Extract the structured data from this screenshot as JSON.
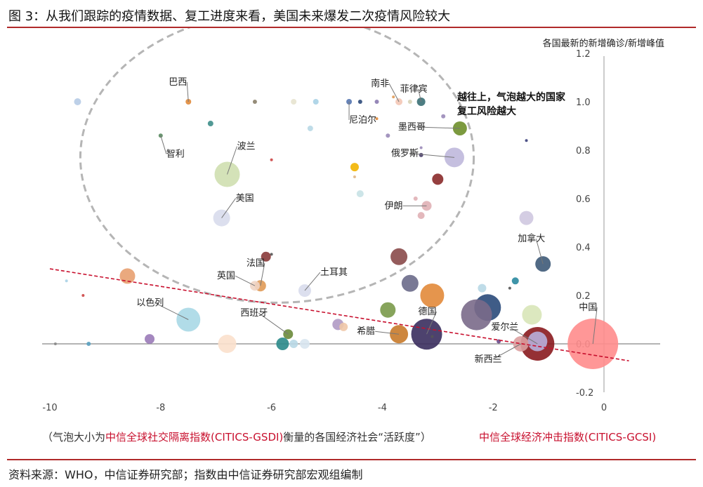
{
  "header": {
    "title": "图 3：从我们跟踪的疫情数据、复工进度来看，美国未来爆发二次疫情风险较大"
  },
  "footer": {
    "footnote_pre": "（气泡大小为",
    "footnote_em": "中信全球社交隔离指数(CITICS-GSDI)",
    "footnote_post": "衡量的各国经济社会“活跃度”）",
    "x_title": "中信全球经济冲击指数(CITICS-GCSI)",
    "source": "资料来源：WHO，中信证券研究部；指数由中信证券研究部宏观组编制"
  },
  "colors": {
    "accent_rule": "#b02a2a",
    "trend_line": "#c8102e",
    "ellipse": "#b5b5b5"
  },
  "chart_data": {
    "type": "scatter",
    "variant": "bubble",
    "y_axis_label": "各国最新的新增确诊/新增峰值",
    "xlim": [
      -10.2,
      0.3
    ],
    "ylim": [
      -0.2,
      1.2
    ],
    "x_ticks": [
      "-10",
      "-8",
      "-6",
      "-4",
      "-2",
      "0"
    ],
    "y_ticks": [
      "1.2",
      "1.0",
      "0.8",
      "0.6",
      "0.4",
      "0.2",
      "0.0",
      "-0.2"
    ],
    "annotation": "越往上，气泡越大的国家\n复工风险越大",
    "trend_line": {
      "from": [
        -10.0,
        0.31
      ],
      "to": [
        0.45,
        -0.07
      ]
    },
    "risk_ellipse": {
      "center": [
        -5.9,
        0.77
      ],
      "rx": 3.55,
      "ry": 0.6
    },
    "points": [
      {
        "name": "巴西",
        "x": -7.5,
        "y": 1.0,
        "size": 4,
        "color": "#e08a3a"
      },
      {
        "name": "南非",
        "x": -3.7,
        "y": 1.0,
        "size": 5,
        "color": "#f3c7b5"
      },
      {
        "name": "菲律宾",
        "x": -3.3,
        "y": 1.0,
        "size": 6,
        "color": "#3a6f74"
      },
      {
        "name": "尼泊尔",
        "x": -4.6,
        "y": 1.0,
        "size": 4,
        "color": "#5575b0"
      },
      {
        "name": "",
        "x": -9.5,
        "y": 1.0,
        "size": 5,
        "color": "#b6cbe6"
      },
      {
        "name": "",
        "x": -6.3,
        "y": 1.0,
        "size": 3,
        "color": "#8a7f6a"
      },
      {
        "name": "",
        "x": -5.6,
        "y": 1.0,
        "size": 4,
        "color": "#e7e3cf"
      },
      {
        "name": "",
        "x": -5.2,
        "y": 1.0,
        "size": 4,
        "color": "#a9d2e6"
      },
      {
        "name": "",
        "x": -4.4,
        "y": 1.0,
        "size": 3,
        "color": "#2e4a7a"
      },
      {
        "name": "",
        "x": -4.1,
        "y": 1.0,
        "size": 3,
        "color": "#8a7ab0"
      },
      {
        "name": "",
        "x": -3.5,
        "y": 1.0,
        "size": 3,
        "color": "#d7d3b6"
      },
      {
        "name": "",
        "x": -3.8,
        "y": 1.02,
        "size": 2,
        "color": "#e09a56"
      },
      {
        "name": "",
        "x": -7.1,
        "y": 0.91,
        "size": 4,
        "color": "#3e8e8a"
      },
      {
        "name": "",
        "x": -5.3,
        "y": 0.89,
        "size": 4,
        "color": "#b8d8e6"
      },
      {
        "name": "",
        "x": -4.1,
        "y": 0.93,
        "size": 2,
        "color": "#e08a3a"
      },
      {
        "name": "",
        "x": -3.9,
        "y": 0.86,
        "size": 3,
        "color": "#9a8ab8"
      },
      {
        "name": "",
        "x": -2.9,
        "y": 0.94,
        "size": 3,
        "color": "#9a8ab8"
      },
      {
        "name": "",
        "x": -1.4,
        "y": 0.84,
        "size": 2,
        "color": "#3a3f7a"
      },
      {
        "name": "墨西哥",
        "x": -2.6,
        "y": 0.89,
        "size": 10,
        "color": "#6e8f2a"
      },
      {
        "name": "智利",
        "x": -8.0,
        "y": 0.86,
        "size": 3,
        "color": "#5a8a60"
      },
      {
        "name": "波兰",
        "x": -6.8,
        "y": 0.7,
        "size": 18,
        "color": "#cfdfb0"
      },
      {
        "name": "",
        "x": -6.0,
        "y": 0.76,
        "size": 2,
        "color": "#c44"
      },
      {
        "name": "",
        "x": -4.5,
        "y": 0.73,
        "size": 6,
        "color": "#f2b400"
      },
      {
        "name": "",
        "x": -4.5,
        "y": 0.69,
        "size": 2,
        "color": "#e0b78a"
      },
      {
        "name": "",
        "x": -4.4,
        "y": 0.62,
        "size": 5,
        "color": "#c8e2e6"
      },
      {
        "name": "俄罗斯",
        "x": -2.7,
        "y": 0.77,
        "size": 14,
        "color": "#bfb8dc"
      },
      {
        "name": "",
        "x": -3.3,
        "y": 0.78,
        "size": 3,
        "color": "#4a3f6a"
      },
      {
        "name": "",
        "x": -3.3,
        "y": 0.81,
        "size": 2,
        "color": "#9a8ab8"
      },
      {
        "name": "",
        "x": -3.0,
        "y": 0.68,
        "size": 8,
        "color": "#8a2a2a"
      },
      {
        "name": "伊朗",
        "x": -3.2,
        "y": 0.57,
        "size": 7,
        "color": "#e0b0b5"
      },
      {
        "name": "",
        "x": -3.3,
        "y": 0.53,
        "size": 5,
        "color": "#e0b0b5"
      },
      {
        "name": "",
        "x": -3.4,
        "y": 0.6,
        "size": 3,
        "color": "#e0b0b5"
      },
      {
        "name": "美国",
        "x": -6.9,
        "y": 0.52,
        "size": 12,
        "color": "#d8dcec"
      },
      {
        "name": "",
        "x": -1.4,
        "y": 0.52,
        "size": 10,
        "color": "#cfc8e0"
      },
      {
        "name": "加拿大",
        "x": -1.1,
        "y": 0.33,
        "size": 11,
        "color": "#3e5a78"
      },
      {
        "name": "",
        "x": -6.0,
        "y": 0.37,
        "size": 2,
        "color": "#555"
      },
      {
        "name": "",
        "x": -6.1,
        "y": 0.36,
        "size": 7,
        "color": "#8a3a3a"
      },
      {
        "name": "",
        "x": -3.7,
        "y": 0.36,
        "size": 12,
        "color": "#8a4a4a"
      },
      {
        "name": "法国",
        "x": -6.2,
        "y": 0.24,
        "size": 8,
        "color": "#e09a56"
      },
      {
        "name": "英国",
        "x": -6.3,
        "y": 0.24,
        "size": 7,
        "color": "#f0d5c5"
      },
      {
        "name": "",
        "x": -8.6,
        "y": 0.28,
        "size": 11,
        "color": "#e8a070"
      },
      {
        "name": "",
        "x": -9.7,
        "y": 0.26,
        "size": 2,
        "color": "#a9d2e6"
      },
      {
        "name": "",
        "x": -9.4,
        "y": 0.2,
        "size": 2,
        "color": "#c44"
      },
      {
        "name": "土耳其",
        "x": -5.4,
        "y": 0.22,
        "size": 9,
        "color": "#d8dcec"
      },
      {
        "name": "",
        "x": -3.5,
        "y": 0.25,
        "size": 12,
        "color": "#6a6a8a"
      },
      {
        "name": "",
        "x": -3.1,
        "y": 0.2,
        "size": 17,
        "color": "#e28a3a"
      },
      {
        "name": "",
        "x": -2.2,
        "y": 0.23,
        "size": 6,
        "color": "#b8d8e6"
      },
      {
        "name": "",
        "x": -1.6,
        "y": 0.26,
        "size": 5,
        "color": "#2a8aa0"
      },
      {
        "name": "",
        "x": -1.7,
        "y": 0.23,
        "size": 2,
        "color": "#555"
      },
      {
        "name": "",
        "x": -2.1,
        "y": 0.15,
        "size": 19,
        "color": "#2a4a7a"
      },
      {
        "name": "",
        "x": -2.3,
        "y": 0.12,
        "size": 22,
        "color": "#7a6a8a"
      },
      {
        "name": "",
        "x": -3.9,
        "y": 0.14,
        "size": 11,
        "color": "#7a9a4a"
      },
      {
        "name": "",
        "x": -1.3,
        "y": 0.12,
        "size": 14,
        "color": "#d8e6b8"
      },
      {
        "name": "德国",
        "x": -3.2,
        "y": 0.04,
        "size": 22,
        "color": "#3a2e5e"
      },
      {
        "name": "希腊",
        "x": -3.7,
        "y": 0.04,
        "size": 13,
        "color": "#c87a2a"
      },
      {
        "name": "以色列",
        "x": -7.5,
        "y": 0.1,
        "size": 17,
        "color": "#a8d8e6"
      },
      {
        "name": "西班牙",
        "x": -5.7,
        "y": 0.04,
        "size": 7,
        "color": "#6a8a3a"
      },
      {
        "name": "",
        "x": -4.8,
        "y": 0.08,
        "size": 8,
        "color": "#b09ac4"
      },
      {
        "name": "",
        "x": -4.7,
        "y": 0.07,
        "size": 6,
        "color": "#f0c8a8"
      },
      {
        "name": "",
        "x": -5.8,
        "y": 0.0,
        "size": 9,
        "color": "#2a8a8a"
      },
      {
        "name": "",
        "x": -5.6,
        "y": 0.0,
        "size": 6,
        "color": "#b8d8e6"
      },
      {
        "name": "",
        "x": -5.4,
        "y": 0.0,
        "size": 7,
        "color": "#d8e6f0"
      },
      {
        "name": "",
        "x": -6.8,
        "y": 0.0,
        "size": 13,
        "color": "#fbe0cc"
      },
      {
        "name": "",
        "x": -8.2,
        "y": 0.02,
        "size": 7,
        "color": "#9a7ab8"
      },
      {
        "name": "",
        "x": -9.3,
        "y": 0.0,
        "size": 3,
        "color": "#5aa0c0"
      },
      {
        "name": "",
        "x": -9.9,
        "y": 0.0,
        "size": 2,
        "color": "#888"
      },
      {
        "name": "",
        "x": -3.1,
        "y": 0.03,
        "size": 2,
        "color": "#555"
      },
      {
        "name": "",
        "x": -1.9,
        "y": 0.01,
        "size": 3,
        "color": "#6a4a8a"
      },
      {
        "name": "爱尔兰",
        "x": -1.2,
        "y": 0.0,
        "size": 24,
        "color": "#8a1a1e"
      },
      {
        "name": "",
        "x": -1.2,
        "y": 0.01,
        "size": 14,
        "color": "#b8b0dc"
      },
      {
        "name": "新西兰",
        "x": -1.5,
        "y": 0.0,
        "size": 11,
        "color": "#dca0a0"
      },
      {
        "name": "中国",
        "x": -0.2,
        "y": 0.0,
        "size": 36,
        "color": "#ff8c8c"
      }
    ]
  }
}
